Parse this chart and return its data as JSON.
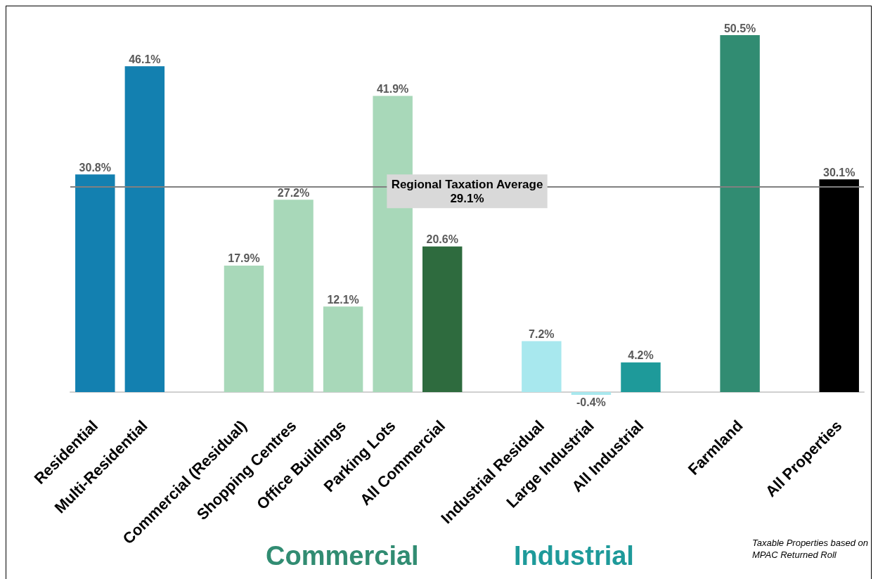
{
  "chart_data": {
    "type": "bar",
    "categories": [
      "Residential",
      "Multi-Residential",
      null,
      "Commercial (Residual)",
      "Shopping Centres",
      "Office Buildings",
      "Parking Lots",
      "All Commercial",
      null,
      "Industrial Residual",
      "Large Industrial",
      "All Industrial",
      null,
      "Farmland",
      null,
      "All Properties"
    ],
    "values": [
      30.8,
      46.1,
      null,
      17.9,
      27.2,
      12.1,
      41.9,
      20.6,
      null,
      7.2,
      -0.4,
      4.2,
      null,
      50.5,
      null,
      30.1
    ],
    "value_labels": [
      "30.8%",
      "46.1%",
      null,
      "17.9%",
      "27.2%",
      "12.1%",
      "41.9%",
      "20.6%",
      null,
      "7.2%",
      "-0.4%",
      "4.2%",
      null,
      "50.5%",
      null,
      "30.1%"
    ],
    "colors": [
      "#1380b0",
      "#1380b0",
      null,
      "#a8d8b9",
      "#a8d8b9",
      "#a8d8b9",
      "#a8d8b9",
      "#2e6b3e",
      null,
      "#a8e8ee",
      "#a8e8ee",
      "#1e9a9a",
      null,
      "#318c72",
      null,
      "#000000"
    ],
    "ref_lines": [
      {
        "axis": "y",
        "value": 29.1,
        "label": "Regional Taxation Average\n29.1%",
        "color": "#808080"
      }
    ],
    "annotations": [
      "Commercial",
      "Industrial",
      "Taxable Properties based on\nMPAC Returned Roll"
    ],
    "grid": false
  }
}
